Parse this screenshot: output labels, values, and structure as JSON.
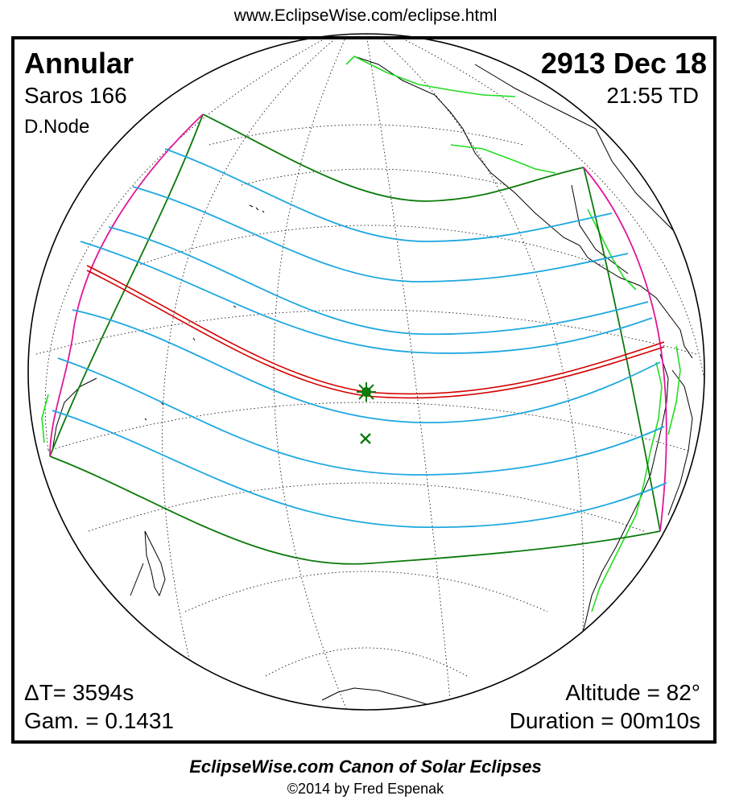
{
  "header": {
    "url": "www.EclipseWise.com/eclipse.html"
  },
  "eclipse": {
    "type": "Annular",
    "saros": "Saros 166",
    "node": "D.Node",
    "date": "2913 Dec 18",
    "time": "21:55 TD",
    "delta_t": "ΔT=   3594s",
    "gamma": "Gam. = 0.1431",
    "altitude": "Altitude = 82°",
    "duration": "Duration = 00m10s"
  },
  "footer": {
    "canon": "EclipseWise.com Canon of Solar Eclipses",
    "copyright": "©2014 by Fred Espenak"
  },
  "colors": {
    "central_path": "#d40000",
    "penumbra_limits": "#0a7a0a",
    "hourly_lines": "#1ea8e0",
    "rise_set_curves": "#e0179a",
    "coastlines": "#000000",
    "borders": "#22dd22",
    "graticule": "#000000"
  },
  "markers": {
    "greatest_eclipse": "star-icon",
    "sub_solar_point": "x-icon"
  }
}
